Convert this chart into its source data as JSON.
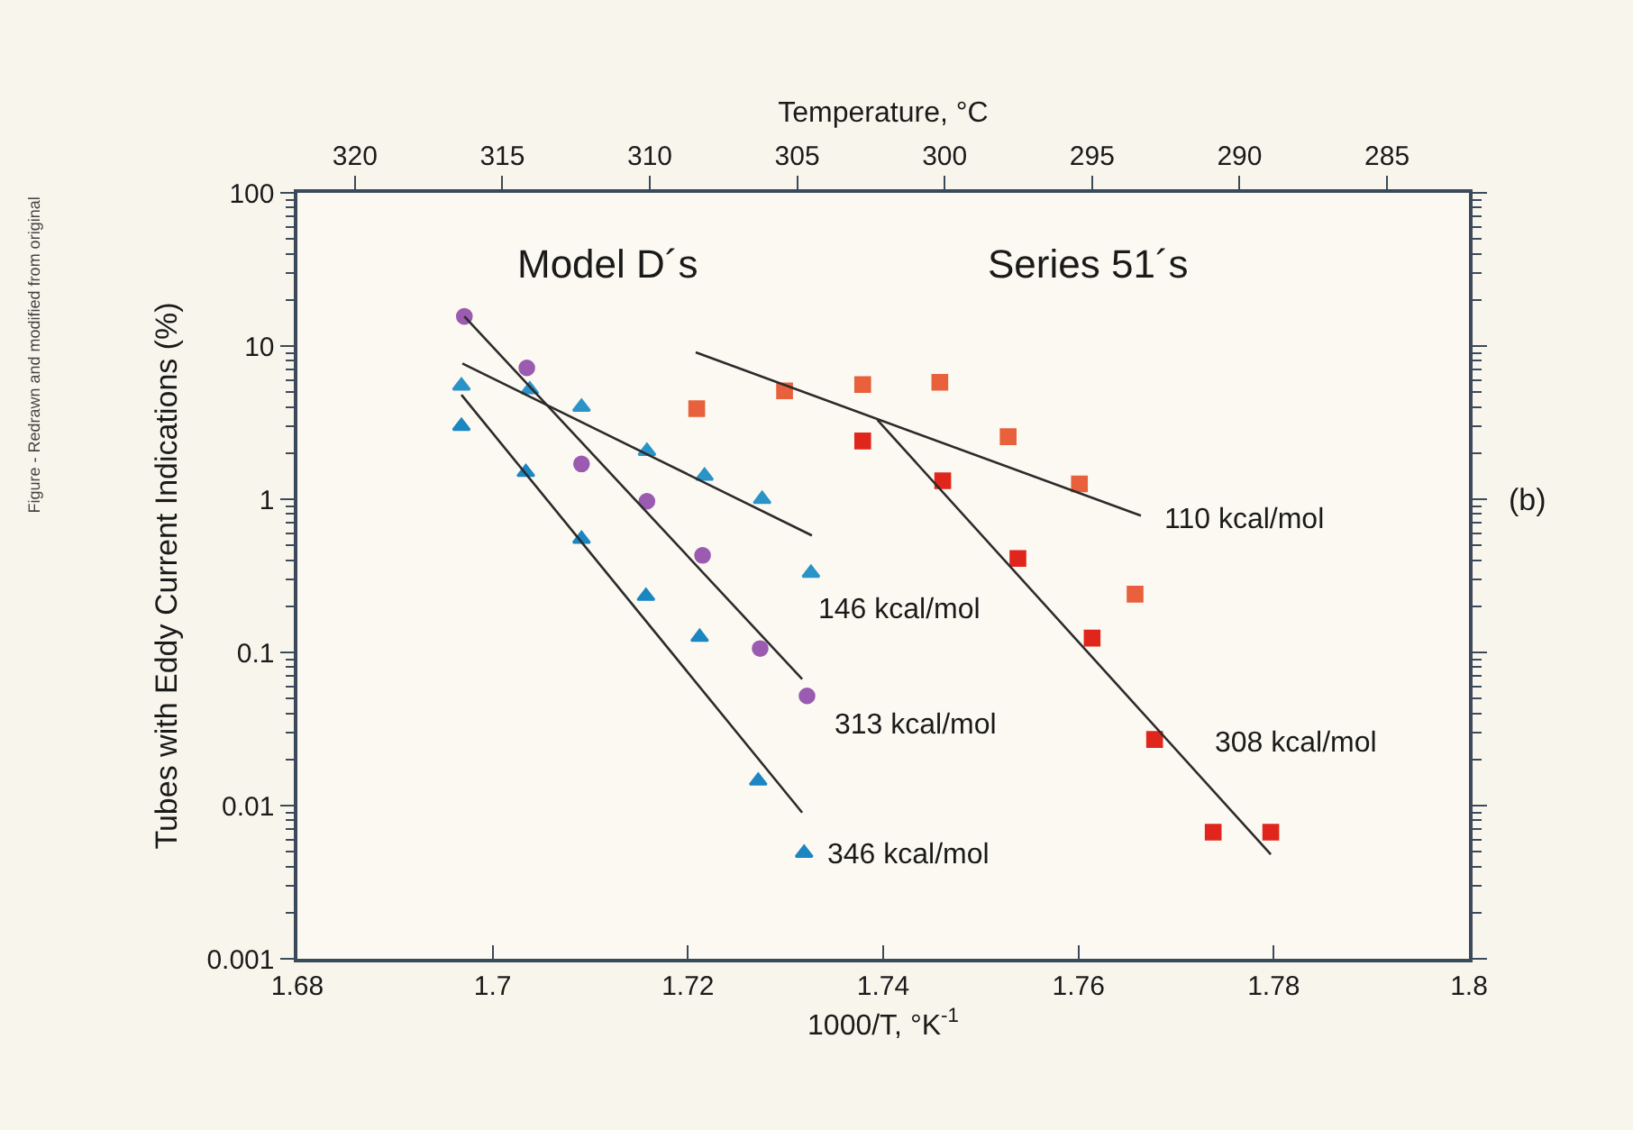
{
  "chart_data": {
    "type": "scatter",
    "xlabel": "1000/T, °K$^{-1}$",
    "ylabel": "Tubes with Eddy Current Indications (%)",
    "x2label": "Temperature, °C",
    "xlim": [
      1.68,
      1.8
    ],
    "xticks": [
      1.68,
      1.7,
      1.72,
      1.74,
      1.76,
      1.78,
      1.8
    ],
    "x2lim": [
      321.95,
      282.22
    ],
    "x2ticks": [
      320,
      315,
      310,
      305,
      300,
      295,
      290,
      285
    ],
    "ylim": [
      0.001,
      100
    ],
    "yticks": [
      0.001,
      0.01,
      0.1,
      1,
      10,
      100
    ],
    "log": "y",
    "grid": false,
    "series": [
      {
        "type": "scatter",
        "marker": "circle",
        "color": "#9a5bb0",
        "x": [
          1.6971,
          1.7035,
          1.7091,
          1.7158,
          1.7215,
          1.7274,
          1.7322
        ],
        "values": [
          15.6,
          7.2,
          1.7,
          0.97,
          0.43,
          0.106,
          0.052
        ]
      },
      {
        "type": "scatter",
        "marker": "triangle",
        "color": "#2a93c8",
        "x": [
          1.6968,
          1.7038,
          1.7091,
          1.7158,
          1.7217,
          1.7276,
          1.7326
        ],
        "values": [
          5.5,
          5.2,
          4.0,
          2.06,
          1.42,
          1.0,
          0.33
        ]
      },
      {
        "type": "scatter",
        "marker": "triangle",
        "color": "#1b86c2",
        "x": [
          1.6968,
          1.7034,
          1.7091,
          1.7157,
          1.7212,
          1.7272,
          1.7319
        ],
        "values": [
          3.0,
          1.5,
          0.55,
          0.233,
          0.126,
          0.0145,
          0.0049
        ]
      },
      {
        "type": "scatter",
        "marker": "square",
        "color": "#e8603c",
        "x": [
          1.7209,
          1.7299,
          1.7379,
          1.7458,
          1.7528,
          1.7601,
          1.7658
        ],
        "values": [
          3.9,
          5.1,
          5.6,
          5.8,
          2.56,
          1.26,
          0.24
        ]
      },
      {
        "type": "scatter",
        "marker": "square",
        "color": "#e0261c",
        "x": [
          1.7379,
          1.7461,
          1.7538,
          1.7614,
          1.7678,
          1.7738,
          1.7797
        ],
        "values": [
          2.4,
          1.32,
          0.41,
          0.124,
          0.027,
          0.0067,
          0.0067
        ]
      },
      {
        "type": "line",
        "marker": "none",
        "color": "#2b2b2b",
        "x": [
          1.6971,
          1.7317
        ],
        "values": [
          15.6,
          0.067
        ]
      },
      {
        "type": "line",
        "marker": "none",
        "color": "#2b2b2b",
        "x": [
          1.6969,
          1.7327
        ],
        "values": [
          7.7,
          0.58
        ]
      },
      {
        "type": "line",
        "marker": "none",
        "color": "#2b2b2b",
        "x": [
          1.6968,
          1.7317
        ],
        "values": [
          4.8,
          0.009
        ]
      },
      {
        "type": "line",
        "marker": "none",
        "color": "#2b2b2b",
        "x": [
          1.7208,
          1.7664
        ],
        "values": [
          9.1,
          0.78
        ]
      },
      {
        "type": "line",
        "marker": "none",
        "color": "#2b2b2b",
        "x": [
          1.7394,
          1.7797
        ],
        "values": [
          3.3,
          0.0048
        ]
      }
    ],
    "annotations": [
      "Model D´s",
      "Series 51´s",
      "110 kcal/mol",
      "146 kcal/mol",
      "313 kcal/mol",
      "346 kcal/mol",
      "308 kcal/mol",
      "Figure - Redrawn and modified from original",
      "(b)"
    ]
  }
}
